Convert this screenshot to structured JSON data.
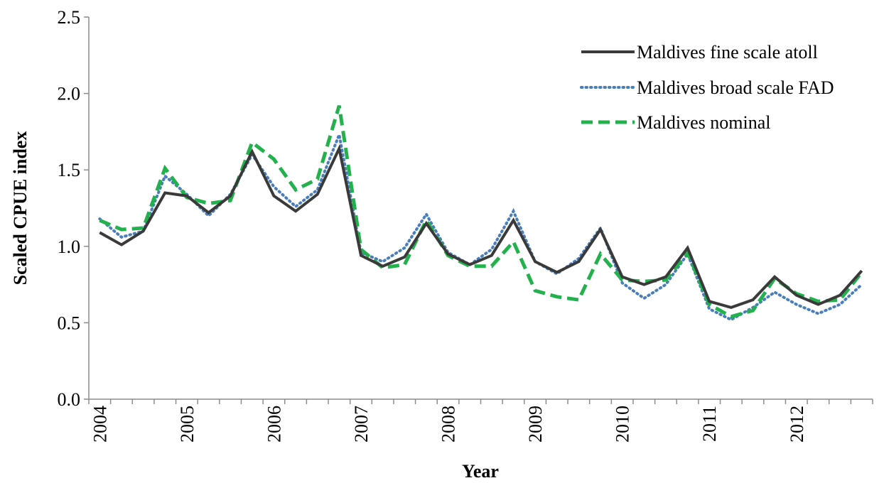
{
  "chart_data": {
    "type": "line",
    "xlabel": "Year",
    "ylabel": "Scaled CPUE index",
    "ylim": [
      0,
      2.5
    ],
    "yticks": [
      "0.0",
      "0.5",
      "1.0",
      "1.5",
      "2.0",
      "2.5"
    ],
    "x_tick_labels": [
      "2004",
      "2005",
      "2006",
      "2007",
      "2008",
      "2009",
      "2010",
      "2011",
      "2012"
    ],
    "x_unit": "quarter",
    "points_per_year": 4,
    "grid": false,
    "legend_position": "top-right",
    "series": [
      {
        "name": "Maldives fine scale atoll",
        "color": "#3a3a3a",
        "style": "solid",
        "values": [
          1.09,
          1.01,
          1.1,
          1.35,
          1.33,
          1.22,
          1.33,
          1.62,
          1.33,
          1.23,
          1.34,
          1.64,
          0.94,
          0.87,
          0.93,
          1.15,
          0.95,
          0.88,
          0.94,
          1.17,
          0.9,
          0.83,
          0.9,
          1.11,
          0.8,
          0.75,
          0.8,
          0.99,
          0.64,
          0.6,
          0.65,
          0.8,
          0.68,
          0.62,
          0.68,
          0.84
        ]
      },
      {
        "name": "Maldives broad scale FAD",
        "color": "#4a7ebb",
        "style": "dotted",
        "values": [
          1.18,
          1.06,
          1.1,
          1.46,
          1.34,
          1.2,
          1.34,
          1.6,
          1.39,
          1.26,
          1.37,
          1.73,
          0.96,
          0.9,
          0.99,
          1.21,
          0.96,
          0.88,
          0.98,
          1.23,
          0.9,
          0.82,
          0.92,
          1.12,
          0.76,
          0.66,
          0.75,
          0.95,
          0.59,
          0.52,
          0.6,
          0.7,
          0.62,
          0.56,
          0.62,
          0.75
        ]
      },
      {
        "name": "Maldives nominal",
        "color": "#22b14c",
        "style": "dashed",
        "values": [
          1.17,
          1.11,
          1.12,
          1.51,
          1.32,
          1.28,
          1.3,
          1.68,
          1.57,
          1.37,
          1.44,
          1.92,
          0.98,
          0.86,
          0.88,
          1.17,
          0.94,
          0.87,
          0.87,
          1.03,
          0.71,
          0.67,
          0.65,
          0.95,
          0.78,
          0.77,
          0.78,
          0.96,
          0.62,
          0.54,
          0.58,
          0.79,
          0.69,
          0.64,
          0.65,
          0.83
        ]
      }
    ]
  }
}
